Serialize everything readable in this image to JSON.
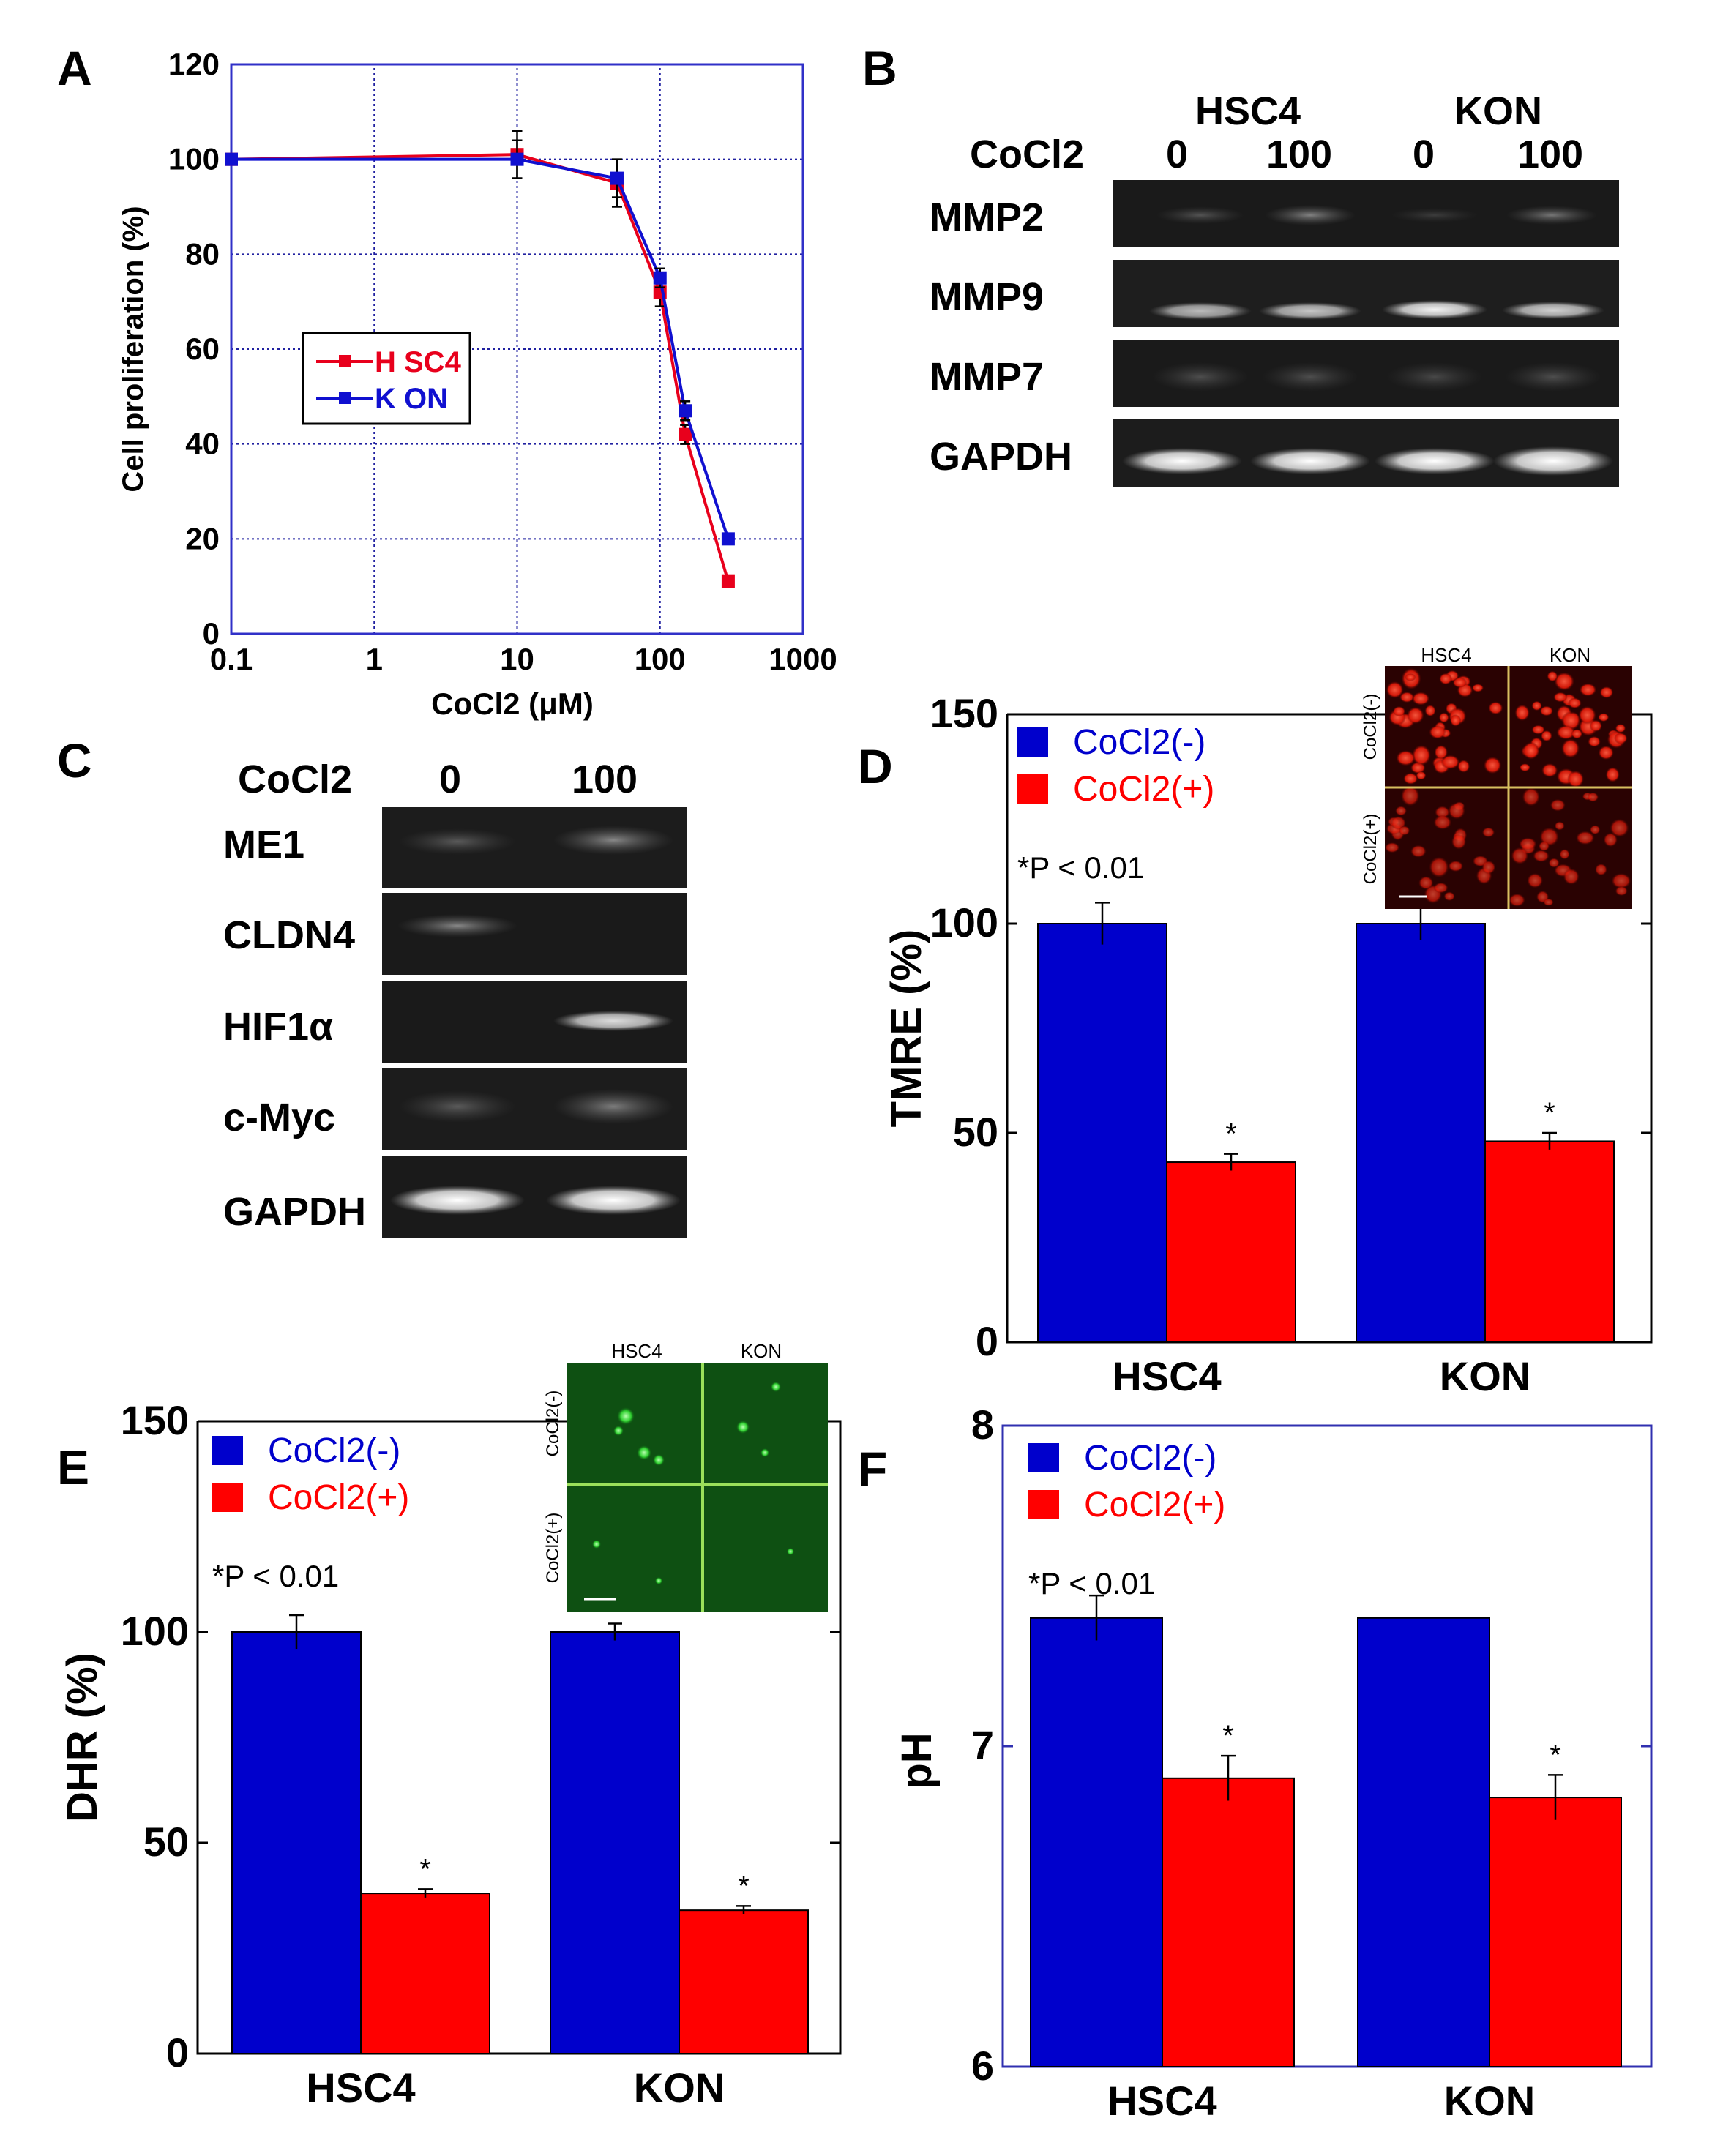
{
  "panels": {
    "A": {
      "letter": "A"
    },
    "B": {
      "letter": "B",
      "group_hsc4": "HSC4",
      "group_kon": "KON",
      "treatment_label": "CoCl2",
      "lanes": [
        "0",
        "100",
        "0",
        "100"
      ],
      "genes": [
        "MMP2",
        "MMP9",
        "MMP7",
        "GAPDH"
      ]
    },
    "C": {
      "letter": "C",
      "treatment_label": "CoCl2",
      "lanes": [
        "0",
        "100"
      ],
      "genes": [
        "ME1",
        "CLDN4",
        "HIF1α",
        "c-Myc",
        "GAPDH"
      ]
    },
    "D": {
      "letter": "D",
      "inset_cols": [
        "HSC4",
        "KON"
      ],
      "inset_rows": [
        "CoCl2(-)",
        "CoCl2(+)"
      ]
    },
    "E": {
      "letter": "E",
      "inset_cols": [
        "HSC4",
        "KON"
      ],
      "inset_rows": [
        "CoCl2(-)",
        "CoCl2(+)"
      ]
    },
    "F": {
      "letter": "F"
    }
  },
  "colors": {
    "blue": "#0000cc",
    "red": "#ff0000",
    "line_red": "#e8001c",
    "line_blue": "#1010d0",
    "gel_dark": "#161616",
    "fluor_red": "#ff2a1a",
    "fluor_green": "#22c030"
  },
  "chart_data": [
    {
      "id": "A",
      "type": "line",
      "xscale": "log",
      "xlabel": "CoCl2 (μM)",
      "ylabel": "Cell proliferation (%)",
      "xlim": [
        0.1,
        1000
      ],
      "ylim": [
        0,
        120
      ],
      "xticks": [
        0.1,
        1,
        10,
        100,
        1000
      ],
      "xtick_labels": [
        "0.1",
        "1",
        "10",
        "100",
        "1000"
      ],
      "yticks": [
        0,
        20,
        40,
        60,
        80,
        100,
        120
      ],
      "ytick_labels": [
        "0",
        "20",
        "40",
        "60",
        "80",
        "100",
        "120"
      ],
      "grid": true,
      "series": [
        {
          "name": "H SC4",
          "color": "#e8001c",
          "x": [
            0.1,
            10,
            50,
            100,
            150,
            300
          ],
          "y": [
            100,
            101,
            95,
            72,
            42,
            11
          ],
          "err": [
            0,
            5,
            5,
            3,
            2,
            0
          ]
        },
        {
          "name": "K ON",
          "color": "#1010d0",
          "x": [
            0.1,
            10,
            50,
            100,
            150,
            300
          ],
          "y": [
            100,
            100,
            96,
            75,
            47,
            20
          ],
          "err": [
            0,
            4,
            4,
            2,
            2,
            0
          ]
        }
      ]
    },
    {
      "id": "D",
      "type": "bar",
      "ylabel": "TMRE (%)",
      "categories": [
        "HSC4",
        "KON"
      ],
      "ylim": [
        0,
        150
      ],
      "yticks": [
        0,
        50,
        100,
        150
      ],
      "ytick_labels": [
        "0",
        "50",
        "100",
        "150"
      ],
      "series": [
        {
          "name": "CoCl2(-)",
          "color": "#0000cc",
          "values": [
            100,
            100
          ],
          "errors": [
            5,
            4
          ]
        },
        {
          "name": "CoCl2(+)",
          "color": "#ff0000",
          "values": [
            43,
            48
          ],
          "errors": [
            2,
            2
          ]
        }
      ],
      "significance": [
        "*",
        "*"
      ],
      "note": "*P < 0.01"
    },
    {
      "id": "E",
      "type": "bar",
      "ylabel": "DHR (%)",
      "categories": [
        "HSC4",
        "KON"
      ],
      "ylim": [
        0,
        150
      ],
      "yticks": [
        0,
        50,
        100,
        150
      ],
      "ytick_labels": [
        "0",
        "50",
        "100",
        "150"
      ],
      "series": [
        {
          "name": "CoCl2(-)",
          "color": "#0000cc",
          "values": [
            100,
            100
          ],
          "errors": [
            4,
            2
          ]
        },
        {
          "name": "CoCl2(+)",
          "color": "#ff0000",
          "values": [
            38,
            34
          ],
          "errors": [
            1,
            1
          ]
        }
      ],
      "significance": [
        "*",
        "*"
      ],
      "note": "*P < 0.01"
    },
    {
      "id": "F",
      "type": "bar",
      "ylabel": "pH",
      "categories": [
        "HSC4",
        "KON"
      ],
      "ylim": [
        6,
        8
      ],
      "yticks": [
        6,
        7,
        8
      ],
      "ytick_labels": [
        "6",
        "7",
        "8"
      ],
      "series": [
        {
          "name": "CoCl2(-)",
          "color": "#0000cc",
          "values": [
            7.4,
            7.4
          ],
          "errors": [
            0.07,
            0
          ]
        },
        {
          "name": "CoCl2(+)",
          "color": "#ff0000",
          "values": [
            6.9,
            6.84
          ],
          "errors": [
            0.07,
            0.07
          ]
        }
      ],
      "significance": [
        "*",
        "*"
      ],
      "note": "*P < 0.01"
    }
  ]
}
